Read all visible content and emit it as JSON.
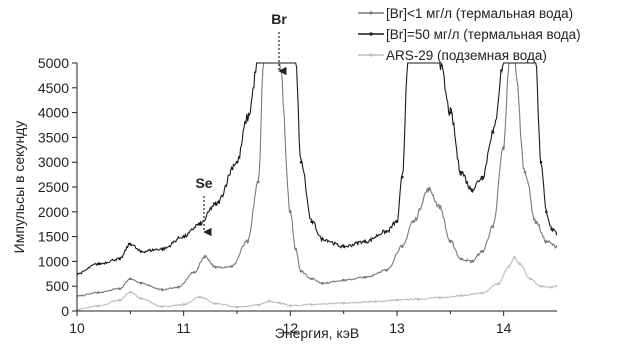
{
  "chart_data": {
    "type": "line",
    "xlabel": "Энергия, кэВ",
    "ylabel": "Импульсы в секунду",
    "xlim": [
      10,
      14.5
    ],
    "ylim": [
      0,
      5000
    ],
    "x_ticks": [
      "10",
      "11",
      "12",
      "13",
      "14"
    ],
    "y_ticks": [
      "0",
      "500",
      "1000",
      "1500",
      "2000",
      "2500",
      "3000",
      "3500",
      "4000",
      "4500",
      "5000"
    ],
    "grid": false,
    "legend_position": "top-right",
    "annotations": [
      {
        "text": "Br",
        "x": 11.88,
        "y": 4800
      },
      {
        "text": "Se",
        "x": 11.2,
        "y": 1250
      }
    ],
    "series": [
      {
        "name": "[Br]<1 мг/л (термальная вода)",
        "color": "#7a7a7a",
        "marker": "dot",
        "x": [
          10.0,
          10.2,
          10.4,
          10.5,
          10.6,
          10.8,
          10.95,
          11.1,
          11.2,
          11.3,
          11.45,
          11.6,
          11.7,
          11.75,
          11.8,
          11.9,
          12.0,
          12.05,
          12.1,
          12.2,
          12.3,
          12.5,
          12.7,
          12.9,
          13.05,
          13.15,
          13.3,
          13.4,
          13.5,
          13.6,
          13.7,
          13.8,
          13.9,
          14.0,
          14.05,
          14.1,
          14.2,
          14.3,
          14.4,
          14.5
        ],
        "y": [
          300,
          370,
          450,
          650,
          560,
          430,
          480,
          780,
          1100,
          880,
          900,
          1400,
          2600,
          5000,
          5000,
          5000,
          2000,
          1250,
          800,
          650,
          560,
          620,
          680,
          820,
          1300,
          1800,
          2450,
          2100,
          1400,
          1050,
          1000,
          1200,
          1700,
          3300,
          5000,
          5000,
          2800,
          1800,
          1400,
          1300
        ]
      },
      {
        "name": "[Br]=50 мг/л (термальная вода)",
        "color": "#1a1a1a",
        "marker": "dot",
        "x": [
          10.0,
          10.2,
          10.4,
          10.5,
          10.6,
          10.8,
          11.0,
          11.15,
          11.3,
          11.5,
          11.6,
          11.7,
          11.75,
          11.9,
          12.05,
          12.1,
          12.2,
          12.3,
          12.5,
          12.7,
          12.9,
          13.0,
          13.05,
          13.1,
          13.2,
          13.3,
          13.4,
          13.5,
          13.6,
          13.7,
          13.8,
          13.9,
          14.0,
          14.05,
          14.3,
          14.35,
          14.4,
          14.45,
          14.5
        ],
        "y": [
          750,
          950,
          1050,
          1350,
          1200,
          1250,
          1500,
          1750,
          2150,
          3000,
          3900,
          5000,
          5000,
          5000,
          5000,
          3000,
          1800,
          1450,
          1300,
          1400,
          1600,
          1800,
          2700,
          5000,
          5000,
          5000,
          5000,
          4000,
          2800,
          2450,
          2700,
          3600,
          5000,
          5000,
          5000,
          3000,
          2000,
          1650,
          1550
        ]
      },
      {
        "name": "ARS-29 (подземная вода)",
        "color": "#bdbdbd",
        "marker": "dot",
        "x": [
          10.0,
          10.2,
          10.4,
          10.5,
          10.6,
          10.8,
          11.0,
          11.15,
          11.3,
          11.5,
          11.7,
          11.8,
          11.9,
          12.0,
          12.2,
          12.5,
          12.8,
          13.0,
          13.2,
          13.4,
          13.6,
          13.8,
          13.95,
          14.05,
          14.1,
          14.15,
          14.25,
          14.35,
          14.45,
          14.5
        ],
        "y": [
          30,
          100,
          220,
          380,
          250,
          90,
          130,
          280,
          150,
          80,
          120,
          200,
          160,
          110,
          130,
          160,
          190,
          220,
          240,
          270,
          310,
          360,
          550,
          900,
          1080,
          950,
          650,
          500,
          480,
          500
        ]
      }
    ]
  }
}
